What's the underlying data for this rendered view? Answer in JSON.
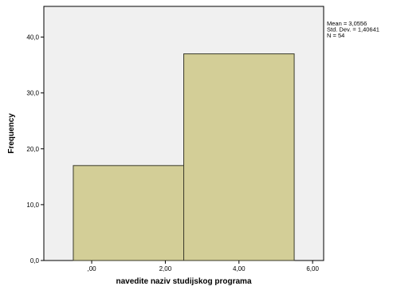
{
  "chart_data": {
    "type": "bar",
    "subtype": "histogram",
    "bins": [
      {
        "x0": -0.5,
        "x1": 2.5,
        "count": 17
      },
      {
        "x0": 2.5,
        "x1": 5.5,
        "count": 37
      }
    ],
    "xlabel": "navedite naziv studijskog programa",
    "ylabel": "Frequency",
    "xlim": [
      -1.3,
      6.3
    ],
    "ylim": [
      0,
      45.5
    ],
    "x_ticks": [
      0,
      2,
      4,
      6
    ],
    "x_tick_labels": [
      ",00",
      "2,00",
      "4,00",
      "6,00"
    ],
    "y_ticks": [
      0,
      10,
      20,
      30,
      40
    ],
    "y_tick_labels": [
      "0,0",
      "10,0",
      "20,0",
      "30,0",
      "40,0"
    ],
    "stats": {
      "mean": "Mean = 3,0556",
      "std_dev": "Std. Dev. = 1,40641",
      "n": "N = 54"
    },
    "grid": false,
    "colors": {
      "bar_fill": "#d3ce97",
      "bar_stroke": "#3a3a2a",
      "plot_background": "#f0f0f0"
    }
  }
}
